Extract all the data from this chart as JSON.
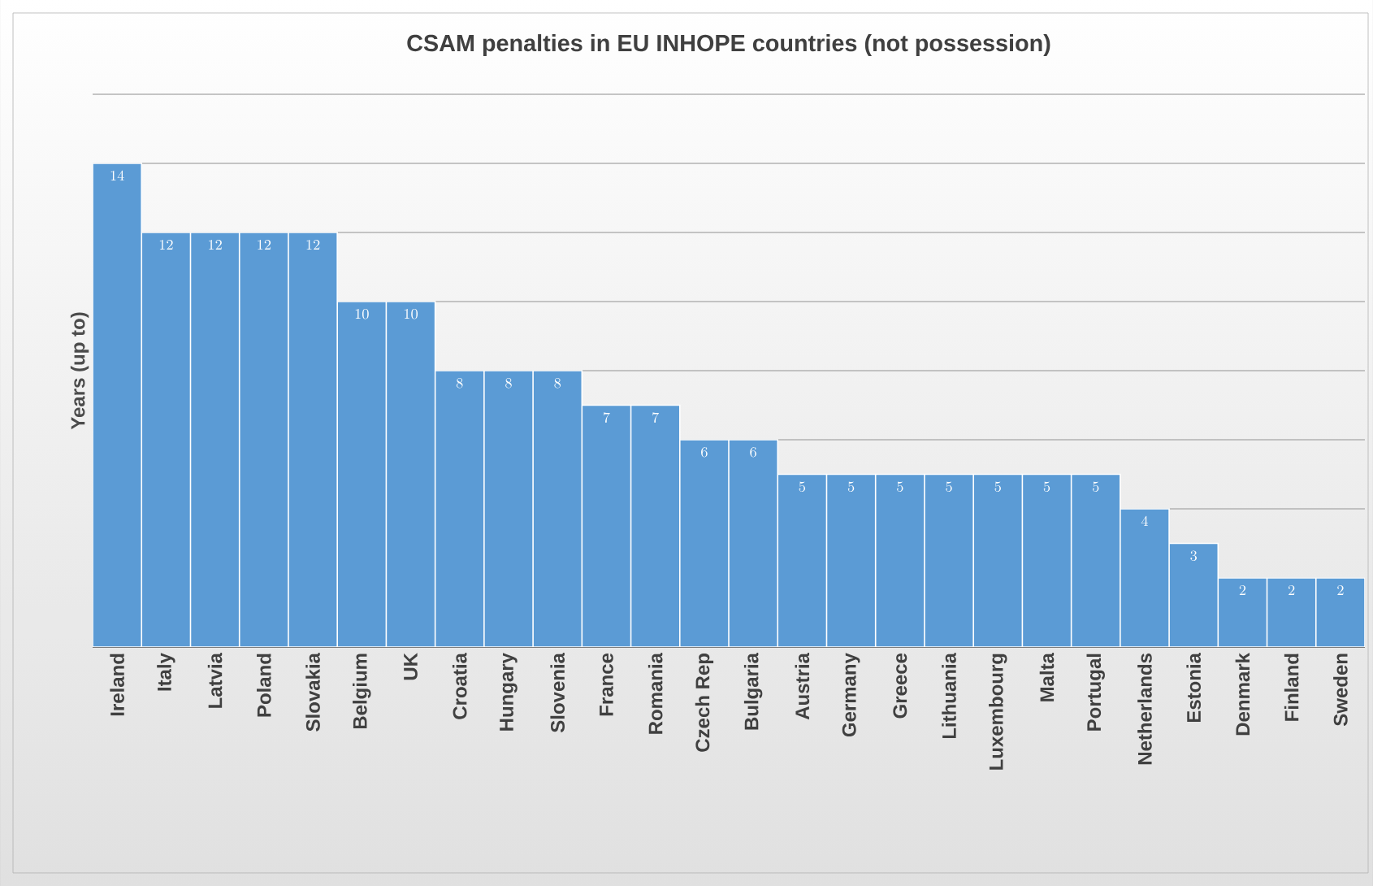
{
  "chart_data": {
    "type": "bar",
    "title": "CSAM penalties in EU INHOPE countries (not possession)",
    "ylabel": "Years (up to)",
    "categories": [
      "Ireland",
      "Italy",
      "Latvia",
      "Poland",
      "Slovakia",
      "Belgium",
      "UK",
      "Croatia",
      "Hungary",
      "Slovenia",
      "France",
      "Romania",
      "Czech Rep",
      "Bulgaria",
      "Austria",
      "Germany",
      "Greece",
      "Lithuania",
      "Luxembourg",
      "Malta",
      "Portugal",
      "Netherlands",
      "Estonia",
      "Denmark",
      "Finland",
      "Sweden"
    ],
    "values": [
      14,
      12,
      12,
      12,
      12,
      10,
      10,
      8,
      8,
      8,
      7,
      7,
      6,
      6,
      5,
      5,
      5,
      5,
      5,
      5,
      5,
      4,
      3,
      2,
      2,
      2
    ],
    "color": "#5b9bd5",
    "data_labels": true,
    "grid": "y",
    "tick_labels": "x",
    "ylim": [
      0,
      16
    ],
    "yticks": [
      {
        "value": 0,
        "label": null
      },
      {
        "value": 2,
        "label": null
      },
      {
        "value": 4,
        "label": null
      },
      {
        "value": 6,
        "label": null
      },
      {
        "value": 8,
        "label": null
      },
      {
        "value": 10,
        "label": null
      },
      {
        "value": 12,
        "label": null
      },
      {
        "value": 14,
        "label": null
      },
      {
        "value": 16,
        "label": null
      }
    ]
  }
}
